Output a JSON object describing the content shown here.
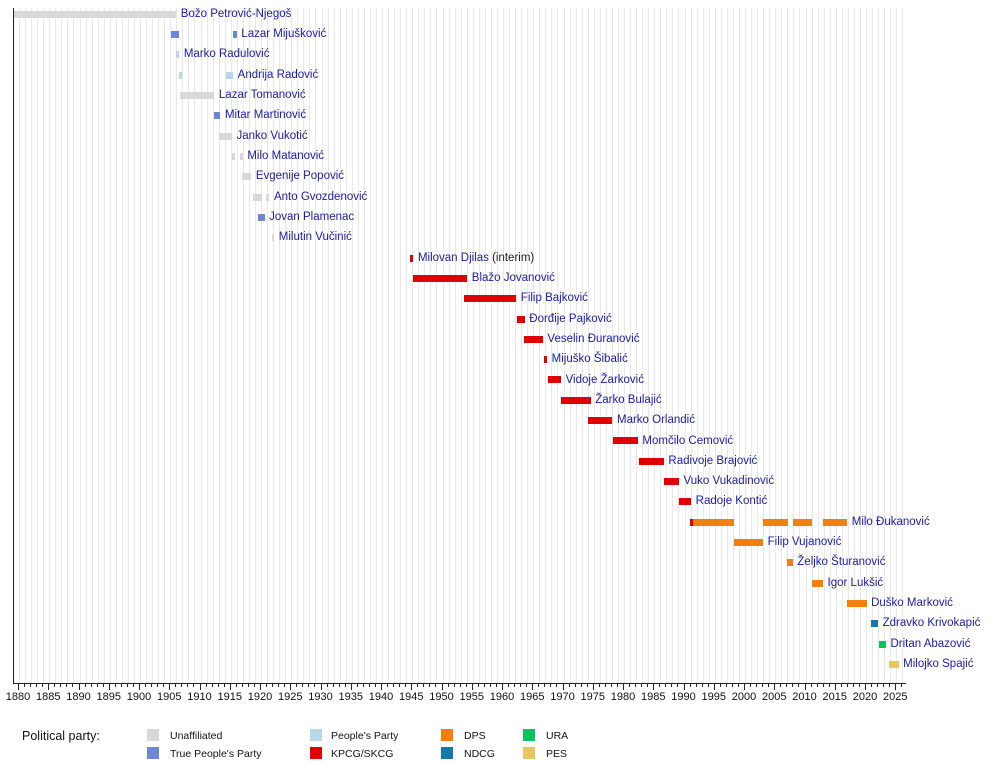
{
  "chart_data": {
    "type": "timeline",
    "title": "",
    "xlabel": "",
    "axis": {
      "min_year": 1880,
      "max_year": 2025,
      "major_tick_step": 5,
      "minor_tick_step": 1,
      "tick_labels": [
        1880,
        1885,
        1890,
        1895,
        1900,
        1905,
        1910,
        1915,
        1920,
        1925,
        1930,
        1935,
        1940,
        1945,
        1950,
        1955,
        1960,
        1965,
        1970,
        1975,
        1980,
        1985,
        1990,
        1995,
        2000,
        2005,
        2010,
        2015,
        2020,
        2025
      ],
      "grid": true
    },
    "parties": {
      "unaffiliated": {
        "label": "Unaffiliated",
        "color": "#d8d8d8"
      },
      "tpp": {
        "label": "True People's Party",
        "color": "#6a87dc"
      },
      "pp": {
        "label": "People's Party",
        "color": "#b8d8e8"
      },
      "kpcg": {
        "label": "KPCG/SKCG",
        "color": "#e10000"
      },
      "dps": {
        "label": "DPS",
        "color": "#f28010"
      },
      "ndcg": {
        "label": "NDCG",
        "color": "#1478a8"
      },
      "ura": {
        "label": "URA",
        "color": "#0cc25c"
      },
      "pes": {
        "label": "PES",
        "color": "#e8c560"
      }
    },
    "ministers": [
      {
        "name": "Božo Petrović-Njegoš",
        "party": "unaffiliated",
        "segments": [
          [
            1879.2,
            1906.0
          ]
        ]
      },
      {
        "name": "Lazar Mijušković",
        "party": "tpp",
        "segments": [
          [
            1905.1,
            1906.4
          ],
          [
            1915.4,
            1916.0
          ]
        ]
      },
      {
        "name": "Marko Radulović",
        "party": "pp",
        "segments": [
          [
            1906.0,
            1906.5
          ]
        ]
      },
      {
        "name": "Andrija Radović",
        "party": "pp",
        "segments": [
          [
            1906.4,
            1906.9
          ],
          [
            1914.2,
            1915.4
          ]
        ]
      },
      {
        "name": "Lazar Tomanović",
        "party": "unaffiliated",
        "segments": [
          [
            1906.6,
            1912.3
          ]
        ]
      },
      {
        "name": "Mitar Martinović",
        "party": "tpp",
        "segments": [
          [
            1912.2,
            1913.3
          ]
        ]
      },
      {
        "name": "Janko Vukotić",
        "party": "unaffiliated",
        "segments": [
          [
            1913.1,
            1915.2
          ]
        ]
      },
      {
        "name": "Milo Matanović",
        "party": "unaffiliated",
        "segments": [
          [
            1915.2,
            1915.7
          ],
          [
            1916.5,
            1917.0
          ]
        ]
      },
      {
        "name": "Evgenije Popović",
        "party": "unaffiliated",
        "segments": [
          [
            1916.9,
            1918.4
          ]
        ]
      },
      {
        "name": "Anto Gvozdenović",
        "party": "unaffiliated",
        "segments": [
          [
            1918.7,
            1920.2
          ],
          [
            1920.9,
            1921.4
          ]
        ]
      },
      {
        "name": "Jovan Plamenac",
        "party": "tpp",
        "segments": [
          [
            1919.5,
            1920.6
          ]
        ]
      },
      {
        "name": "Milutin Vučinić",
        "party": "unaffiliated",
        "segments": [
          [
            1921.8,
            1922.2
          ]
        ]
      },
      {
        "name": "Milovan Djilas",
        "suffix": " (interim)",
        "party": "kpcg",
        "segments": [
          [
            1944.7,
            1945.2
          ]
        ]
      },
      {
        "name": "Blažo Jovanović",
        "party": "kpcg",
        "segments": [
          [
            1945.1,
            1954.1
          ]
        ]
      },
      {
        "name": "Filip Bajković",
        "party": "kpcg",
        "segments": [
          [
            1953.6,
            1962.2
          ]
        ]
      },
      {
        "name": "Đorđije Pajković",
        "party": "kpcg",
        "segments": [
          [
            1962.3,
            1963.6
          ]
        ]
      },
      {
        "name": "Veselin Đuranović",
        "party": "kpcg",
        "segments": [
          [
            1963.5,
            1966.6
          ]
        ]
      },
      {
        "name": "Mijuško Šibalić",
        "party": "kpcg",
        "segments": [
          [
            1966.8,
            1967.3
          ]
        ]
      },
      {
        "name": "Vidoje Žarković",
        "party": "kpcg",
        "segments": [
          [
            1967.4,
            1969.6
          ]
        ]
      },
      {
        "name": "Žarko Bulajić",
        "party": "kpcg",
        "segments": [
          [
            1969.6,
            1974.5
          ]
        ]
      },
      {
        "name": "Marko Orlandić",
        "party": "kpcg",
        "segments": [
          [
            1974.0,
            1978.1
          ]
        ]
      },
      {
        "name": "Momčilo Cemović",
        "party": "kpcg",
        "segments": [
          [
            1978.1,
            1982.3
          ]
        ]
      },
      {
        "name": "Radivoje Brajović",
        "party": "kpcg",
        "segments": [
          [
            1982.4,
            1986.6
          ]
        ]
      },
      {
        "name": "Vuko Vukadinović",
        "party": "kpcg",
        "segments": [
          [
            1986.6,
            1989.1
          ]
        ]
      },
      {
        "name": "Radoje Kontić",
        "party": "kpcg",
        "segments": [
          [
            1989.1,
            1991.1
          ]
        ]
      },
      {
        "name": "Milo Đukanović",
        "party": "dps",
        "segments": [
          [
            1990.9,
            1991.4,
            "kpcg"
          ],
          [
            1991.4,
            1998.2
          ],
          [
            2003.0,
            2007.1
          ],
          [
            2007.9,
            2011.0
          ],
          [
            2012.9,
            2016.9
          ]
        ]
      },
      {
        "name": "Filip Vujanović",
        "party": "dps",
        "segments": [
          [
            1998.2,
            2003.0
          ]
        ]
      },
      {
        "name": "Željko Šturanović",
        "party": "dps",
        "segments": [
          [
            2006.9,
            2007.9
          ]
        ]
      },
      {
        "name": "Igor Lukšić",
        "party": "dps",
        "segments": [
          [
            2011.0,
            2012.9
          ]
        ]
      },
      {
        "name": "Duško Marković",
        "party": "dps",
        "segments": [
          [
            2016.9,
            2020.1
          ]
        ]
      },
      {
        "name": "Zdravko Krivokapić",
        "party": "ndcg",
        "segments": [
          [
            2020.8,
            2022.0
          ]
        ]
      },
      {
        "name": "Dritan Abazović",
        "party": "ura",
        "segments": [
          [
            2022.1,
            2023.3
          ]
        ]
      },
      {
        "name": "Milojko Spajić",
        "party": "pes",
        "segments": [
          [
            2023.8,
            2025.4
          ]
        ]
      }
    ],
    "legend": {
      "title": "Political party:",
      "position": "bottom",
      "columns": [
        [
          "unaffiliated",
          "tpp"
        ],
        [
          "pp",
          "kpcg"
        ],
        [
          "dps",
          "ndcg"
        ],
        [
          "ura",
          "pes"
        ]
      ]
    }
  }
}
